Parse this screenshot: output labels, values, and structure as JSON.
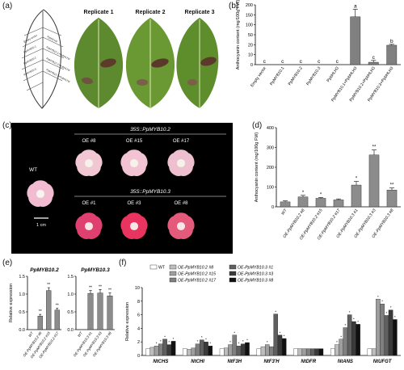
{
  "panel_labels": [
    "(a)",
    "(b)",
    "(c)",
    "(d)",
    "(e)",
    "(f)"
  ],
  "panel_a": {
    "replicates": [
      "Replicate 1",
      "Replicate 2",
      "Replicate 3"
    ],
    "leaf_labels": [
      "Empty vector",
      "PpMYB10.1",
      "PpMYB10.2",
      "PpMYB10.3",
      "PpbHLH3",
      "PpMYB10.1+PpbHLH3",
      "PpMYB10.2+PpbHLH3",
      "PpMYB10.3+PpbHLH3"
    ]
  },
  "panel_c": {
    "wt": "WT",
    "group1_title": "35S::PpMYB10.2",
    "group1": [
      "OE #8",
      "OE #15",
      "OE #17"
    ],
    "group2_title": "35S::PpMYB10.3",
    "group2": [
      "OE #1",
      "OE #3",
      "OE #8"
    ],
    "scale": "1 cm"
  },
  "chart_data": [
    {
      "id": "b",
      "type": "bar",
      "ylabel": "Anthocyanin content (mg/100g FW)",
      "categories": [
        "Empty vector",
        "PpMYB10.1",
        "PpMYB10.2",
        "PpMYB10.3",
        "PpbHLH3",
        "PpMYB10.1+PpbHLH3",
        "PpMYB10.2+PpbHLH3",
        "PpMYB10.3+PpbHLH3"
      ],
      "values": [
        0,
        0,
        0,
        0,
        0,
        160,
        8,
        65
      ],
      "errors": [
        0,
        0,
        0,
        0,
        0,
        25,
        6,
        3
      ],
      "letters": [
        "c",
        "c",
        "c",
        "c",
        "c",
        "a",
        "c",
        "b"
      ],
      "yticks": [
        "0",
        "10",
        "20",
        "50",
        "100",
        "150",
        "200"
      ],
      "ylim": [
        0,
        200
      ]
    },
    {
      "id": "d",
      "type": "bar",
      "ylabel": "Anthocyanin content (mg/100g FW)",
      "categories": [
        "WT",
        "OE-PpMYB10.2 #8",
        "OE-PpMYB10.2 #15",
        "OE-PpMYB10.2 #17",
        "OE-PpMYB10.3 #1",
        "OE-PpMYB10.3 #3",
        "OE-PpMYB10.3 #8"
      ],
      "values": [
        25,
        50,
        43,
        35,
        110,
        262,
        85
      ],
      "errors": [
        5,
        8,
        4,
        5,
        18,
        25,
        10
      ],
      "sig": [
        "",
        "*",
        "*",
        "",
        "*",
        "**",
        "**"
      ],
      "yticks": [
        "0",
        "100",
        "200",
        "300",
        "400"
      ],
      "ylim": [
        0,
        400
      ]
    },
    {
      "id": "e1",
      "type": "bar",
      "title": "PpMYB10.2",
      "ylabel": "Relative expression",
      "categories": [
        "WT",
        "OE-PpMYB10.2 #8",
        "OE-PpMYB10.2 #15",
        "OE-PpMYB10.2 #17"
      ],
      "values": [
        0.0,
        0.38,
        1.1,
        0.55
      ],
      "errors": [
        0,
        0.05,
        0.08,
        0.05
      ],
      "sig": [
        "",
        "**",
        "**",
        "**"
      ],
      "yticks": [
        "0.0",
        "0.5",
        "1.0",
        "1.5"
      ],
      "ylim": [
        0,
        1.5
      ]
    },
    {
      "id": "e2",
      "type": "bar",
      "title": "PpMYB10.3",
      "ylabel": "",
      "categories": [
        "WT",
        "OE-PpMYB10.3 #1",
        "OE-PpMYB10.3 #3",
        "OE-PpMYB10.3 #8"
      ],
      "values": [
        0.0,
        1.02,
        1.03,
        0.95
      ],
      "errors": [
        0,
        0.08,
        0.1,
        0.08
      ],
      "sig": [
        "",
        "**",
        "**",
        "**"
      ],
      "yticks": [
        "0.0",
        "0.5",
        "1.0",
        "1.5"
      ],
      "ylim": [
        0,
        1.5
      ]
    },
    {
      "id": "f",
      "type": "bar",
      "ylabel": "Relative expression",
      "categories": [
        "NtCHS",
        "NtCHI",
        "NtF3H",
        "NtF3'H",
        "NtDFR",
        "NtANS",
        "NtUFGT"
      ],
      "series": [
        {
          "name": "WT",
          "color": "#ffffff",
          "values": [
            1,
            1,
            1,
            1,
            1,
            1,
            1
          ]
        },
        {
          "name": "OE-PpMYB10.2 #8",
          "color": "#bdbdbd",
          "values": [
            1.2,
            0.9,
            1.1,
            1.3,
            1.0,
            1.6,
            1.0
          ]
        },
        {
          "name": "OE-PpMYB10.2 #15",
          "color": "#9e9e9e",
          "values": [
            1.4,
            1.1,
            1.6,
            1.6,
            1.0,
            2.4,
            8.3
          ]
        },
        {
          "name": "OE-PpMYB10.2 #17",
          "color": "#7f7f7f",
          "values": [
            1.7,
            1.7,
            3.0,
            1.3,
            1.0,
            4.1,
            7.6
          ]
        },
        {
          "name": "OE-PpMYB10.3 #1",
          "color": "#5f5f5f",
          "values": [
            2.4,
            2.3,
            1.4,
            6.1,
            1.0,
            6.0,
            5.9
          ]
        },
        {
          "name": "OE-PpMYB10.3 #3",
          "color": "#3a3a3a",
          "values": [
            1.6,
            2.0,
            1.7,
            3.0,
            1.0,
            5.0,
            6.7
          ]
        },
        {
          "name": "OE-PpMYB10.3 #8",
          "color": "#111111",
          "values": [
            2.1,
            1.4,
            1.9,
            2.5,
            1.0,
            4.6,
            5.3
          ]
        }
      ],
      "yticks": [
        "0",
        "2",
        "4",
        "6",
        "8",
        "10"
      ],
      "ylim": [
        0,
        10
      ]
    }
  ]
}
